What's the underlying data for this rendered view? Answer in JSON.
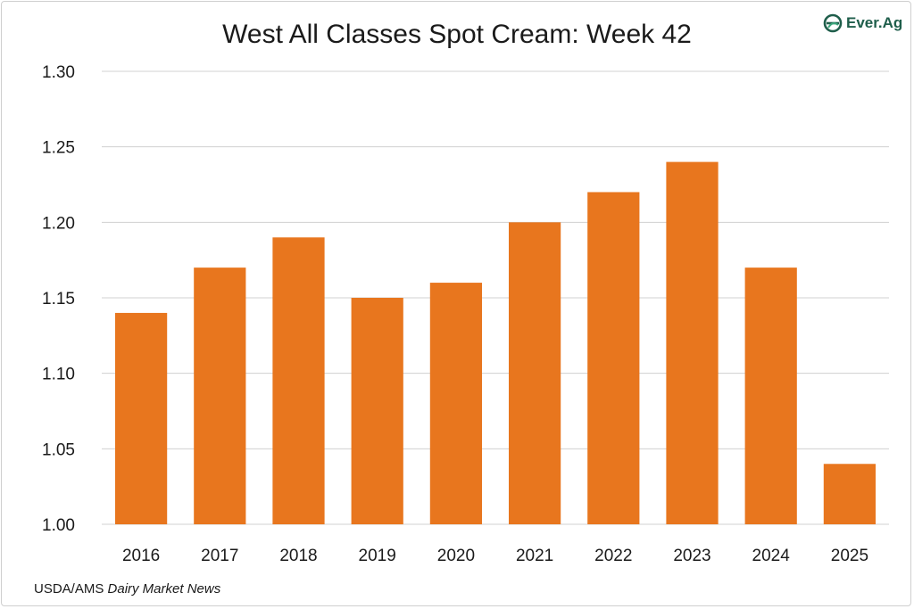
{
  "title": "West All Classes Spot Cream: Week 42",
  "logo_text": "Ever.Ag",
  "source": {
    "prefix": "USDA/AMS ",
    "publication": "Dairy Market News"
  },
  "colors": {
    "bar": "#E8761E",
    "grid": "#d0d0d0",
    "text": "#1a1a1a",
    "logo": "#1f5e4b"
  },
  "chart_data": {
    "type": "bar",
    "title": "West All Classes Spot Cream: Week 42",
    "categories": [
      "2016",
      "2017",
      "2018",
      "2019",
      "2020",
      "2021",
      "2022",
      "2023",
      "2024",
      "2025"
    ],
    "values": [
      1.14,
      1.17,
      1.19,
      1.15,
      1.16,
      1.2,
      1.22,
      1.24,
      1.17,
      1.04
    ],
    "ylim": [
      1.0,
      1.3
    ],
    "yticks": [
      "1.00",
      "1.05",
      "1.10",
      "1.15",
      "1.20",
      "1.25",
      "1.30"
    ],
    "xlabel": "",
    "ylabel": "",
    "grid": true,
    "legend": "none"
  }
}
